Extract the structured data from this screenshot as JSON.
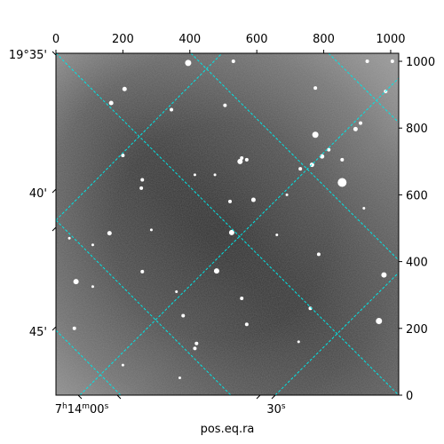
{
  "chart_data": {
    "type": "image",
    "title": "",
    "xlabel": "pos.eq.ra",
    "ylabel": "",
    "pixel_axes": {
      "x_range": [
        0,
        1024
      ],
      "y_range": [
        0,
        1024
      ],
      "top_ticks": [
        "0",
        "200",
        "400",
        "600",
        "800",
        "1000"
      ],
      "right_ticks": [
        "0",
        "200",
        "400",
        "600",
        "800",
        "1000"
      ]
    },
    "world_axes": {
      "dec_tick_labels": [
        "19°35'",
        "40'",
        "45'"
      ],
      "ra_tick_labels": {
        "first": {
          "prefix": "7",
          "h": "h",
          "min": "14",
          "m": "m",
          "sec": "00",
          "s": "s"
        },
        "second": {
          "sec": "30",
          "s": "s"
        }
      }
    },
    "grid": {
      "on": true,
      "color": "#00e5e5",
      "style": "dashed",
      "projection": "rotated ~45°"
    },
    "stars": [
      {
        "x": 395,
        "y": 995,
        "r": 3.5
      },
      {
        "x": 530,
        "y": 1000,
        "r": 2
      },
      {
        "x": 205,
        "y": 917,
        "r": 2.5
      },
      {
        "x": 165,
        "y": 875,
        "r": 2.5
      },
      {
        "x": 345,
        "y": 855,
        "r": 2
      },
      {
        "x": 505,
        "y": 868,
        "r": 2
      },
      {
        "x": 775,
        "y": 920,
        "r": 2
      },
      {
        "x": 985,
        "y": 910,
        "r": 2
      },
      {
        "x": 930,
        "y": 1000,
        "r": 2
      },
      {
        "x": 1005,
        "y": 1000,
        "r": 2
      },
      {
        "x": 910,
        "y": 815,
        "r": 2
      },
      {
        "x": 895,
        "y": 797,
        "r": 2.5
      },
      {
        "x": 775,
        "y": 780,
        "r": 3.5
      },
      {
        "x": 815,
        "y": 735,
        "r": 2
      },
      {
        "x": 795,
        "y": 715,
        "r": 2.5
      },
      {
        "x": 855,
        "y": 705,
        "r": 2
      },
      {
        "x": 765,
        "y": 690,
        "r": 2.5
      },
      {
        "x": 730,
        "y": 678,
        "r": 2
      },
      {
        "x": 855,
        "y": 637,
        "r": 5
      },
      {
        "x": 555,
        "y": 710,
        "r": 2
      },
      {
        "x": 570,
        "y": 705,
        "r": 2
      },
      {
        "x": 550,
        "y": 700,
        "r": 3
      },
      {
        "x": 200,
        "y": 718,
        "r": 2
      },
      {
        "x": 258,
        "y": 645,
        "r": 2
      },
      {
        "x": 255,
        "y": 620,
        "r": 2
      },
      {
        "x": 415,
        "y": 660,
        "r": 1.5
      },
      {
        "x": 475,
        "y": 660,
        "r": 1.5
      },
      {
        "x": 590,
        "y": 585,
        "r": 2.5
      },
      {
        "x": 520,
        "y": 580,
        "r": 2
      },
      {
        "x": 160,
        "y": 485,
        "r": 2.5
      },
      {
        "x": 285,
        "y": 495,
        "r": 1.5
      },
      {
        "x": 525,
        "y": 487,
        "r": 3
      },
      {
        "x": 660,
        "y": 480,
        "r": 1.5
      },
      {
        "x": 785,
        "y": 422,
        "r": 2
      },
      {
        "x": 480,
        "y": 372,
        "r": 3
      },
      {
        "x": 258,
        "y": 370,
        "r": 2
      },
      {
        "x": 60,
        "y": 340,
        "r": 3
      },
      {
        "x": 980,
        "y": 360,
        "r": 3
      },
      {
        "x": 555,
        "y": 290,
        "r": 2
      },
      {
        "x": 760,
        "y": 260,
        "r": 2
      },
      {
        "x": 380,
        "y": 238,
        "r": 2
      },
      {
        "x": 570,
        "y": 212,
        "r": 2
      },
      {
        "x": 965,
        "y": 222,
        "r": 3.5
      },
      {
        "x": 55,
        "y": 200,
        "r": 2
      },
      {
        "x": 420,
        "y": 155,
        "r": 2
      },
      {
        "x": 415,
        "y": 140,
        "r": 2
      },
      {
        "x": 725,
        "y": 160,
        "r": 1.5
      },
      {
        "x": 370,
        "y": 52,
        "r": 1.5
      },
      {
        "x": 200,
        "y": 90,
        "r": 1.5
      },
      {
        "x": 40,
        "y": 470,
        "r": 1.5
      },
      {
        "x": 110,
        "y": 450,
        "r": 1.5
      },
      {
        "x": 920,
        "y": 560,
        "r": 1.5
      },
      {
        "x": 690,
        "y": 600,
        "r": 1.5
      },
      {
        "x": 360,
        "y": 310,
        "r": 1.5
      },
      {
        "x": 110,
        "y": 325,
        "r": 1.5
      }
    ]
  }
}
